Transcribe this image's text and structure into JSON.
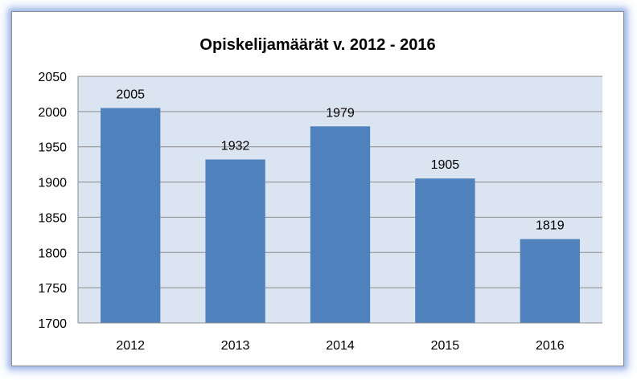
{
  "chart_data": {
    "type": "bar",
    "title": "Opiskelijamäärät  v. 2012 - 2016",
    "categories": [
      "2012",
      "2013",
      "2014",
      "2015",
      "2016"
    ],
    "values": [
      2005,
      1932,
      1979,
      1905,
      1819
    ],
    "ylim": [
      1700,
      2050
    ],
    "yticks": [
      "1700",
      "1750",
      "1800",
      "1850",
      "1900",
      "1950",
      "2000",
      "2050"
    ],
    "grid": true,
    "legend": "none",
    "colors": {
      "bar": "#4f81bd",
      "plot_bg": "#dbe4f1",
      "grid": "#8c8c8c"
    }
  }
}
